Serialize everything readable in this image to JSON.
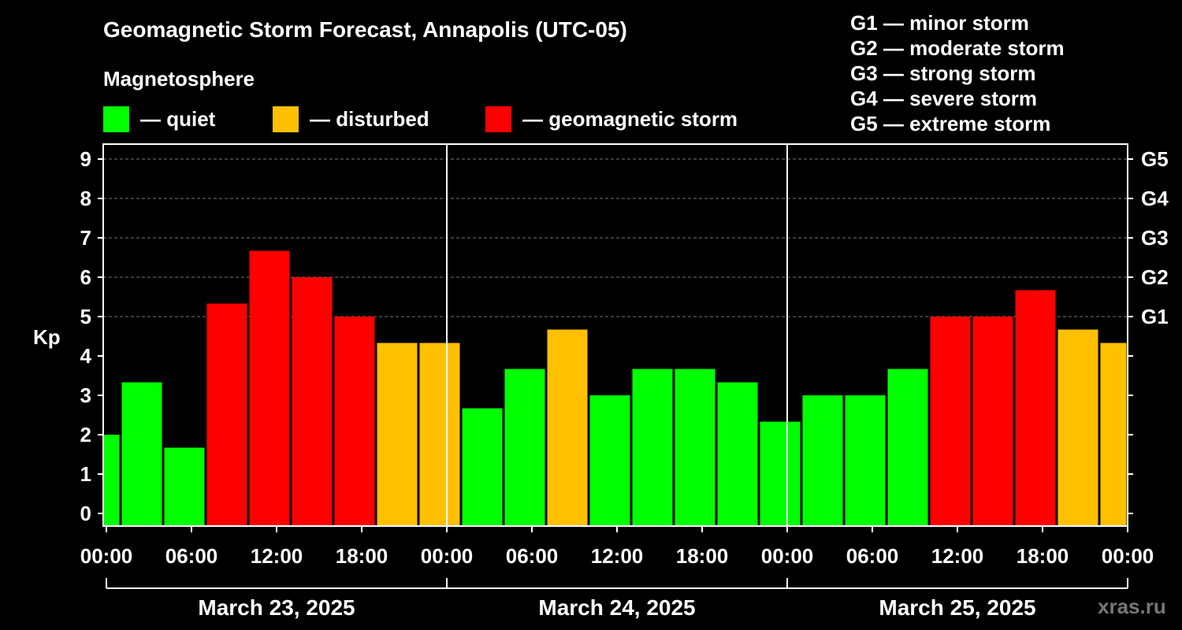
{
  "title": "Geomagnetic Storm Forecast, Annapolis (UTC-05)",
  "subtitle": "Magnetosphere",
  "legend": [
    {
      "label": "— quiet",
      "color": "#00ff00"
    },
    {
      "label": "— disturbed",
      "color": "#ffc000"
    },
    {
      "label": "— geomagnetic storm",
      "color": "#ff0000"
    }
  ],
  "g_levels": [
    "G1 — minor storm",
    "G2 — moderate storm",
    "G3 — strong storm",
    "G4 — severe storm",
    "G5 — extreme storm"
  ],
  "watermark": "xras.ru",
  "chart_data": {
    "type": "bar",
    "ylabel": "Kp",
    "ylim": [
      0,
      9
    ],
    "y_ticks": [
      "0",
      "1",
      "2",
      "3",
      "4",
      "5",
      "6",
      "7",
      "8",
      "9"
    ],
    "right_ticks": [
      {
        "value": 5,
        "label": "G1"
      },
      {
        "value": 6,
        "label": "G2"
      },
      {
        "value": 7,
        "label": "G3"
      },
      {
        "value": 8,
        "label": "G4"
      },
      {
        "value": 9,
        "label": "G5"
      }
    ],
    "x_ticks": [
      "00:00",
      "06:00",
      "12:00",
      "18:00",
      "00:00",
      "06:00",
      "12:00",
      "18:00",
      "00:00",
      "06:00",
      "12:00",
      "18:00",
      "00:00"
    ],
    "days": [
      "March 23, 2025",
      "March 24, 2025",
      "March 25, 2025"
    ],
    "time_range_hours": [
      -0.33,
      72
    ],
    "colors": {
      "quiet": "#00ff00",
      "disturbed": "#ffc000",
      "storm": "#ff0000"
    },
    "bars": [
      {
        "start_h": -0.33,
        "end_h": 1,
        "value": 2.0,
        "level": "quiet"
      },
      {
        "start_h": 1,
        "end_h": 4,
        "value": 3.33,
        "level": "quiet"
      },
      {
        "start_h": 4,
        "end_h": 7,
        "value": 1.67,
        "level": "quiet"
      },
      {
        "start_h": 7,
        "end_h": 10,
        "value": 5.33,
        "level": "storm"
      },
      {
        "start_h": 10,
        "end_h": 13,
        "value": 6.67,
        "level": "storm"
      },
      {
        "start_h": 13,
        "end_h": 16,
        "value": 6.0,
        "level": "storm"
      },
      {
        "start_h": 16,
        "end_h": 19,
        "value": 5.0,
        "level": "storm"
      },
      {
        "start_h": 19,
        "end_h": 22,
        "value": 4.33,
        "level": "disturbed"
      },
      {
        "start_h": 22,
        "end_h": 25,
        "value": 4.33,
        "level": "disturbed"
      },
      {
        "start_h": 25,
        "end_h": 28,
        "value": 2.67,
        "level": "quiet"
      },
      {
        "start_h": 28,
        "end_h": 31,
        "value": 3.67,
        "level": "quiet"
      },
      {
        "start_h": 31,
        "end_h": 34,
        "value": 4.67,
        "level": "disturbed"
      },
      {
        "start_h": 34,
        "end_h": 37,
        "value": 3.0,
        "level": "quiet"
      },
      {
        "start_h": 37,
        "end_h": 40,
        "value": 3.67,
        "level": "quiet"
      },
      {
        "start_h": 40,
        "end_h": 43,
        "value": 3.67,
        "level": "quiet"
      },
      {
        "start_h": 43,
        "end_h": 46,
        "value": 3.33,
        "level": "quiet"
      },
      {
        "start_h": 46,
        "end_h": 49,
        "value": 2.33,
        "level": "quiet"
      },
      {
        "start_h": 49,
        "end_h": 52,
        "value": 3.0,
        "level": "quiet"
      },
      {
        "start_h": 52,
        "end_h": 55,
        "value": 3.0,
        "level": "quiet"
      },
      {
        "start_h": 55,
        "end_h": 58,
        "value": 3.67,
        "level": "quiet"
      },
      {
        "start_h": 58,
        "end_h": 61,
        "value": 5.0,
        "level": "storm"
      },
      {
        "start_h": 61,
        "end_h": 64,
        "value": 5.0,
        "level": "storm"
      },
      {
        "start_h": 64,
        "end_h": 67,
        "value": 5.67,
        "level": "storm"
      },
      {
        "start_h": 67,
        "end_h": 70,
        "value": 4.67,
        "level": "disturbed"
      },
      {
        "start_h": 70,
        "end_h": 72,
        "value": 4.33,
        "level": "disturbed"
      }
    ]
  }
}
